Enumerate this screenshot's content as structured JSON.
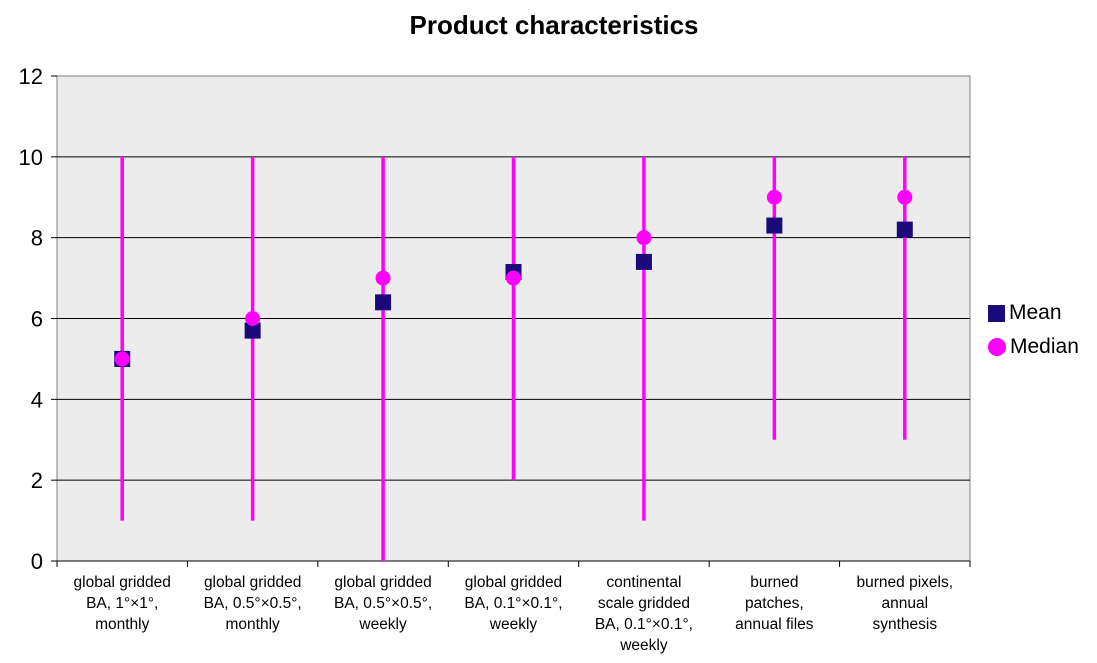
{
  "chart_data": {
    "type": "scatter",
    "title": "Product characteristics",
    "xlabel": "",
    "ylabel": "",
    "ylim": [
      0,
      12
    ],
    "yticks": [
      "0",
      "2",
      "4",
      "6",
      "8",
      "10",
      "12"
    ],
    "grid": true,
    "legend_position": "right",
    "categories": [
      [
        "global gridded",
        "BA, 1°×1°,",
        "monthly"
      ],
      [
        "global gridded",
        "BA, 0.5°×0.5°,",
        "monthly"
      ],
      [
        "global gridded",
        "BA, 0.5°×0.5°,",
        "weekly"
      ],
      [
        "global gridded",
        "BA, 0.1°×0.1°,",
        "weekly"
      ],
      [
        "continental",
        "scale gridded",
        "BA, 0.1°×0.1°,",
        "weekly"
      ],
      [
        "burned",
        "patches,",
        "annual files"
      ],
      [
        "burned pixels,",
        "annual",
        "synthesis"
      ]
    ],
    "range": {
      "min": [
        1,
        1,
        0,
        2,
        1,
        3,
        3
      ],
      "max": [
        10,
        10,
        10,
        10,
        10,
        10,
        10
      ]
    },
    "series": [
      {
        "name": "Mean",
        "marker": "square",
        "color": "#1a0a7a",
        "values": [
          5.0,
          5.7,
          6.4,
          7.15,
          7.4,
          8.3,
          8.2
        ]
      },
      {
        "name": "Median",
        "marker": "circle",
        "color": "#ff00ff",
        "values": [
          5.0,
          6.0,
          7.0,
          7.0,
          8.0,
          9.0,
          9.0
        ]
      }
    ],
    "colors": {
      "plot_background": "#ececec",
      "range_line": "#ff00ff",
      "grid": "#000000"
    }
  }
}
